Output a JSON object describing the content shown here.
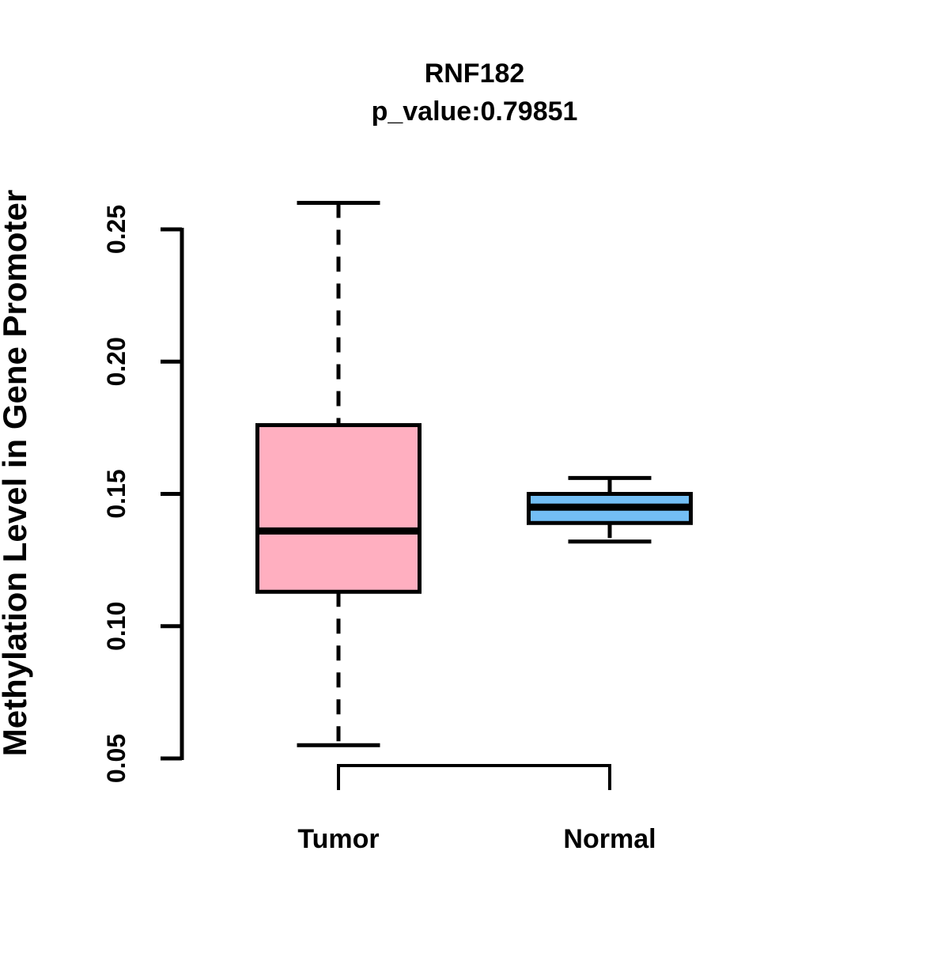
{
  "chart_data": {
    "type": "boxplot",
    "title": "RNF182",
    "subtitle": "p_value:0.79851",
    "ylabel": "Methylation Level in Gene Promoter",
    "xlabel": "",
    "ylim": [
      0.05,
      0.25
    ],
    "yticks": [
      "0.05",
      "0.10",
      "0.15",
      "0.20",
      "0.25"
    ],
    "ytick_values": [
      0.05,
      0.1,
      0.15,
      0.2,
      0.25
    ],
    "grid": false,
    "legend": "none",
    "axis_color": "#000000",
    "groups": [
      {
        "label": "Tumor",
        "color": "#FFAFC0",
        "stats": {
          "whisker_low": 0.055,
          "q1": 0.113,
          "median": 0.136,
          "q3": 0.176,
          "whisker_high": 0.26
        }
      },
      {
        "label": "Normal",
        "color": "#73BEF4",
        "stats": {
          "whisker_low": 0.132,
          "q1": 0.139,
          "median": 0.145,
          "q3": 0.15,
          "whisker_high": 0.156
        }
      }
    ]
  }
}
